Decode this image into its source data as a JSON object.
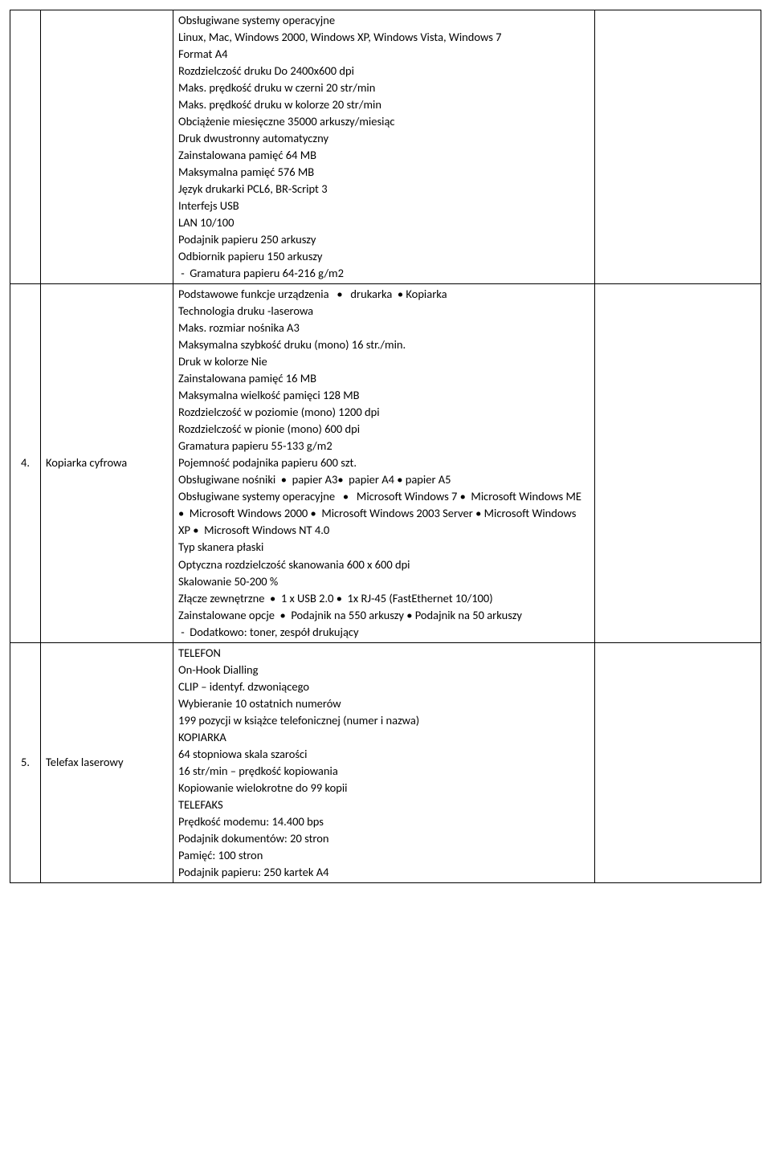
{
  "table": {
    "rows": [
      {
        "num": "",
        "name": "",
        "desc_lines": [
          "Obsługiwane systemy operacyjne",
          "Linux, Mac, Windows 2000, Windows XP, Windows Vista, Windows 7",
          "Format A4",
          "Rozdzielczość druku Do 2400x600 dpi",
          "Maks. prędkość druku w czerni 20 str/min",
          "Maks. prędkość druku w kolorze 20 str/min",
          "Obciążenie miesięczne 35000 arkuszy/miesiąc",
          "Druk dwustronny automatyczny",
          "Zainstalowana pamięć 64 MB",
          "Maksymalna pamięć 576 MB",
          "Język drukarki PCL6, BR-Script 3",
          "Interfejs USB",
          "LAN 10/100",
          "Podajnik papieru 250 arkuszy",
          "Odbiornik papieru 150 arkuszy",
          " -  Gramatura papieru 64-216 g/m2"
        ]
      },
      {
        "num": "4.",
        "name": "Kopiarka cyfrowa",
        "desc_lines": [
          "Podstawowe funkcje urządzenia   •   drukarka  • Kopiarka",
          "Technologia druku -laserowa",
          "Maks. rozmiar nośnika A3",
          "Maksymalna szybkość druku (mono) 16 str./min.",
          "Druk w kolorze Nie",
          "Zainstalowana pamięć 16 MB",
          "Maksymalna wielkość pamięci 128 MB",
          "Rozdzielczość w poziomie (mono) 1200 dpi",
          "Rozdzielczość w pionie (mono) 600 dpi",
          "Gramatura papieru 55-133 g/m2",
          "Pojemność podajnika papieru 600 szt.",
          "Obsługiwane nośniki  •  papier A3•  papier A4 • papier A5",
          "Obsługiwane systemy operacyjne   •   Microsoft Windows 7 •  Microsoft Windows ME •  Microsoft Windows 2000 •  Microsoft Windows 2003 Server • Microsoft Windows XP •  Microsoft Windows NT 4.0",
          "Typ skanera płaski",
          "Optyczna rozdzielczość skanowania 600 x 600 dpi",
          "Skalowanie 50-200 %",
          "Złącze zewnętrzne  •  1 x USB 2.0 •  1x RJ-45 (FastEthernet 10/100)",
          "Zainstalowane opcje  •  Podajnik na 550 arkuszy • Podajnik na 50 arkuszy",
          " -  Dodatkowo: toner, zespół drukujący"
        ]
      },
      {
        "num": "5.",
        "name": "Telefax laserowy",
        "desc_lines": [
          "TELEFON",
          "On-Hook Dialling",
          "CLIP – identyf. dzwoniącego",
          "Wybieranie 10 ostatnich numerów",
          "199 pozycji w książce telefonicznej (numer i nazwa)",
          "KOPIARKA",
          "64 stopniowa skala szarości",
          "16 str/min – prędkość kopiowania",
          "Kopiowanie wielokrotne do 99 kopii",
          "TELEFAKS",
          "Prędkość modemu: 14.400 bps",
          "Podajnik dokumentów: 20 stron",
          "Pamięć: 100 stron",
          "Podajnik papieru: 250 kartek A4"
        ]
      }
    ]
  }
}
